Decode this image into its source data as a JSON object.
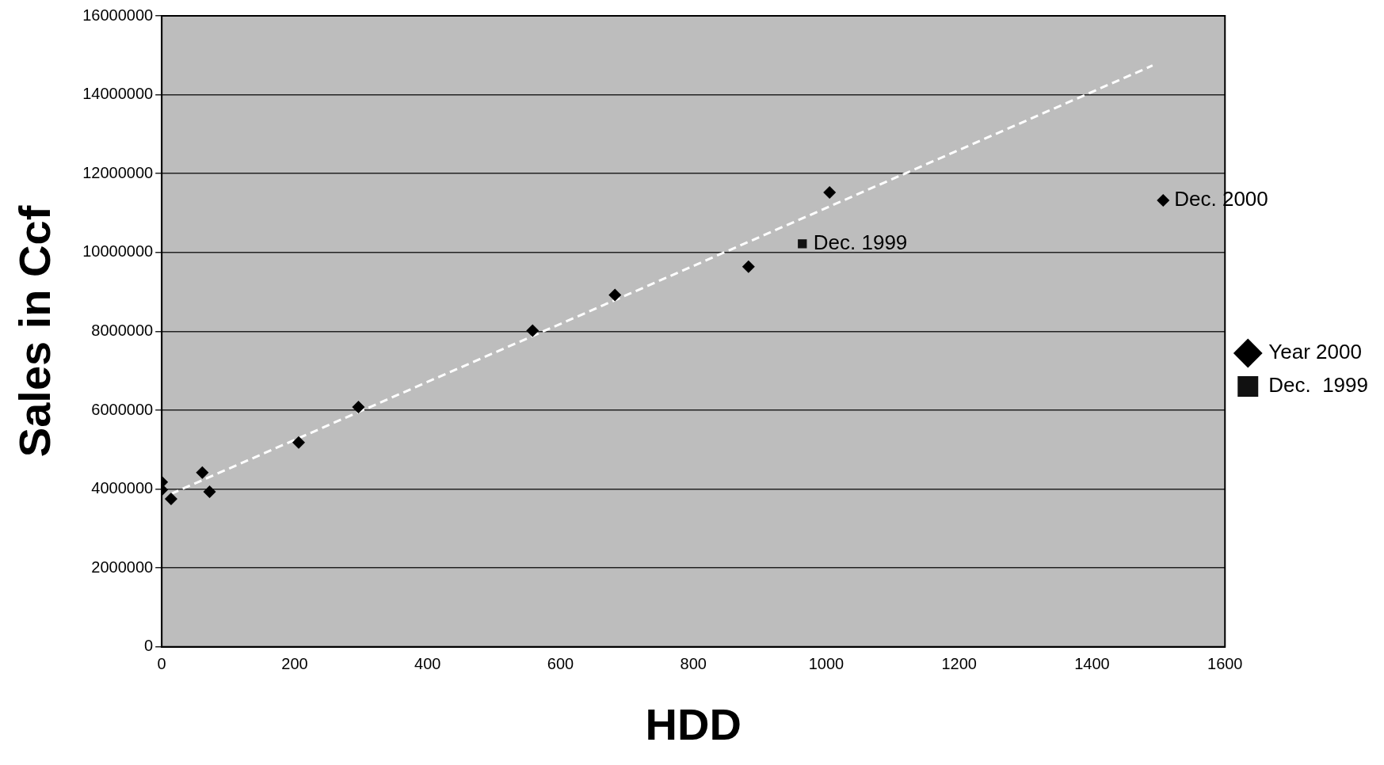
{
  "chart_data": {
    "type": "scatter",
    "xlabel": "HDD",
    "ylabel": "Sales in Ccf",
    "xlim": [
      0,
      1600
    ],
    "xticks": [
      0,
      200,
      400,
      600,
      800,
      1000,
      1200,
      1400,
      1600
    ],
    "ylim": [
      0,
      16000000
    ],
    "yticks": [
      0,
      2000000,
      4000000,
      6000000,
      8000000,
      10000000,
      12000000,
      14000000,
      16000000
    ],
    "grid": "y",
    "legend": "right",
    "series": [
      {
        "name": "Year 2000",
        "color": "#000000",
        "marker": "diamond",
        "x": [
          0,
          0,
          14,
          61,
          72,
          206,
          296,
          558,
          682,
          883,
          1005,
          1507
        ],
        "values": [
          4180000,
          3980000,
          3750000,
          4420000,
          3930000,
          5180000,
          6080000,
          8020000,
          8920000,
          9640000,
          11520000,
          11320000
        ]
      },
      {
        "name": "Dec.  1999",
        "color": "#111111",
        "marker": "square",
        "x": [
          964
        ],
        "values": [
          10220000
        ]
      },
      {
        "type": "line",
        "color": "#ffffff",
        "marker": "none",
        "line_style": "dashed",
        "x": [
          14,
          1491
        ],
        "values": [
          3880000,
          14740000
        ]
      }
    ],
    "annotations": [
      {
        "text": "Dec. 2000",
        "x": 1507,
        "y": 11320000
      },
      {
        "text": "Dec. 1999",
        "x": 964,
        "y": 10220000
      }
    ]
  }
}
